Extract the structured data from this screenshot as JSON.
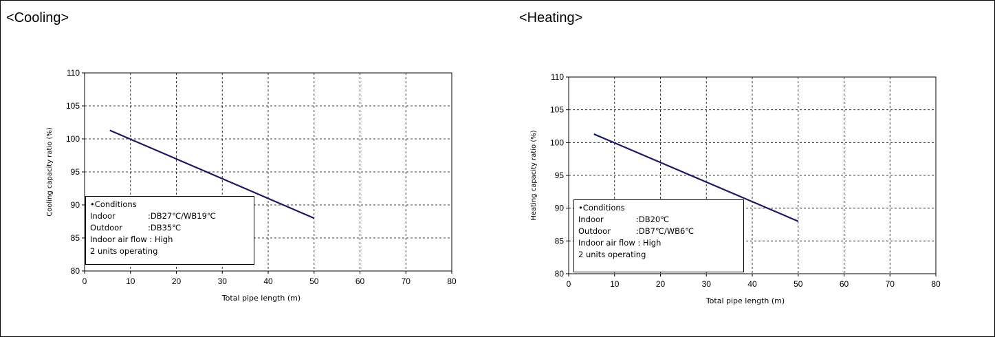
{
  "cooling": {
    "heading": "<Cooling>",
    "conditions": {
      "title": "•Conditions",
      "rows": [
        {
          "key": "Indoor",
          "value": ":DB27℃/WB19℃"
        },
        {
          "key": "Outdoor",
          "value": ":DB35℃"
        }
      ],
      "airflow": "Indoor air flow : High",
      "units": "2 units operating"
    }
  },
  "heating": {
    "heading": "<Heating>",
    "conditions": {
      "title": "•Conditions",
      "rows": [
        {
          "key": "Indoor",
          "value": ":DB20℃"
        },
        {
          "key": "Outdoor",
          "value": ":DB7℃/WB6℃"
        }
      ],
      "airflow": "Indoor air flow : High",
      "units": "2 units operating"
    }
  },
  "chart_data": [
    {
      "type": "line",
      "title": "",
      "xlabel": "Total pipe length (m)",
      "ylabel": "Cooling capacity ratio (%)",
      "xlim": [
        0,
        80
      ],
      "ylim": [
        80,
        110
      ],
      "xticks": [
        0,
        10,
        20,
        30,
        40,
        50,
        60,
        70,
        80
      ],
      "yticks": [
        80,
        85,
        90,
        95,
        100,
        105,
        110
      ],
      "grid": true,
      "line_color": "#1a1a5e",
      "series": [
        {
          "x": [
            5.5,
            50
          ],
          "y": [
            101.3,
            88.0
          ]
        }
      ]
    },
    {
      "type": "line",
      "title": "",
      "xlabel": "Total pipe length (m)",
      "ylabel": "Heating capacity ratio (%)",
      "xlim": [
        0,
        80
      ],
      "ylim": [
        80,
        110
      ],
      "xticks": [
        0,
        10,
        20,
        30,
        40,
        50,
        60,
        70,
        80
      ],
      "yticks": [
        80,
        85,
        90,
        95,
        100,
        105,
        110
      ],
      "grid": true,
      "line_color": "#1a1a5e",
      "series": [
        {
          "x": [
            5.5,
            50
          ],
          "y": [
            101.3,
            88.0
          ]
        }
      ]
    }
  ]
}
